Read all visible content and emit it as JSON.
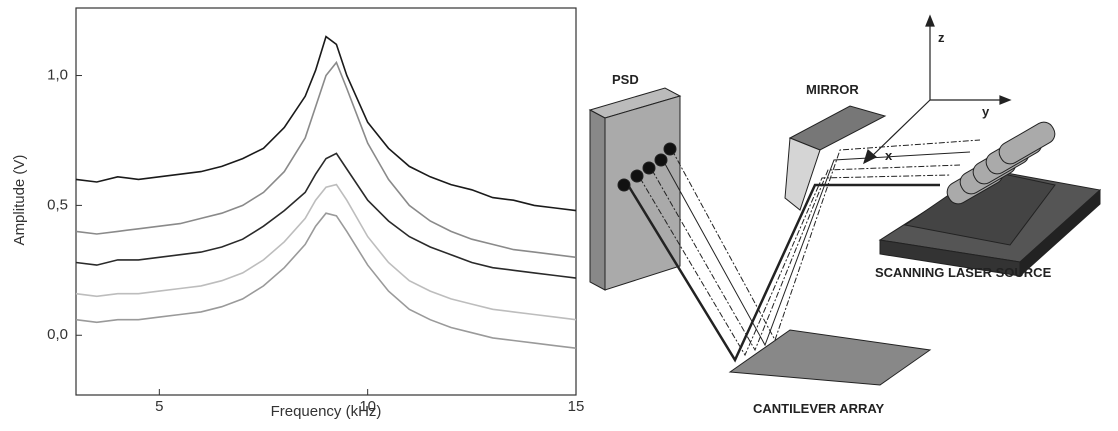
{
  "chart_data": {
    "type": "line",
    "xlabel": "Frequency (kHz)",
    "ylabel": "Amplitude (V)",
    "x": [
      3,
      3.5,
      4,
      4.5,
      5,
      5.5,
      6,
      6.5,
      7,
      7.5,
      8,
      8.5,
      8.75,
      9,
      9.25,
      9.5,
      10,
      10.5,
      11,
      11.5,
      12,
      12.5,
      13,
      13.5,
      14,
      14.5,
      15
    ],
    "series": [
      {
        "color": "#1a1a1a",
        "values": [
          0.6,
          0.59,
          0.61,
          0.6,
          0.61,
          0.62,
          0.63,
          0.65,
          0.68,
          0.72,
          0.8,
          0.92,
          1.02,
          1.15,
          1.12,
          1.0,
          0.82,
          0.72,
          0.65,
          0.61,
          0.58,
          0.56,
          0.53,
          0.52,
          0.5,
          0.49,
          0.48
        ]
      },
      {
        "color": "#8a8a8a",
        "values": [
          0.4,
          0.39,
          0.4,
          0.41,
          0.42,
          0.43,
          0.45,
          0.47,
          0.5,
          0.55,
          0.63,
          0.76,
          0.88,
          1.0,
          1.05,
          0.95,
          0.74,
          0.6,
          0.5,
          0.44,
          0.4,
          0.37,
          0.35,
          0.33,
          0.32,
          0.31,
          0.3
        ]
      },
      {
        "color": "#2a2a2a",
        "values": [
          0.28,
          0.27,
          0.29,
          0.29,
          0.3,
          0.31,
          0.32,
          0.34,
          0.37,
          0.42,
          0.48,
          0.55,
          0.62,
          0.68,
          0.7,
          0.64,
          0.52,
          0.44,
          0.38,
          0.34,
          0.31,
          0.28,
          0.26,
          0.25,
          0.24,
          0.23,
          0.22
        ]
      },
      {
        "color": "#bdbdbd",
        "values": [
          0.16,
          0.15,
          0.16,
          0.16,
          0.17,
          0.18,
          0.19,
          0.21,
          0.24,
          0.29,
          0.36,
          0.45,
          0.52,
          0.57,
          0.58,
          0.52,
          0.38,
          0.28,
          0.21,
          0.17,
          0.14,
          0.12,
          0.1,
          0.09,
          0.08,
          0.07,
          0.06
        ]
      },
      {
        "color": "#9a9a9a",
        "values": [
          0.06,
          0.05,
          0.06,
          0.06,
          0.07,
          0.08,
          0.09,
          0.11,
          0.14,
          0.19,
          0.26,
          0.35,
          0.42,
          0.47,
          0.46,
          0.4,
          0.27,
          0.17,
          0.1,
          0.06,
          0.03,
          0.01,
          -0.01,
          -0.02,
          -0.03,
          -0.04,
          -0.05
        ]
      }
    ],
    "xlim": [
      3,
      15
    ],
    "xticks": [
      5,
      10,
      15
    ],
    "ylim": [
      -0.23,
      1.26
    ],
    "yticks": [
      {
        "value": 0,
        "label": "0,0"
      },
      {
        "value": 0.5,
        "label": "0,5"
      },
      {
        "value": 1,
        "label": "1,0"
      }
    ]
  },
  "diagram": {
    "psd": "PSD",
    "mirror": "MIRROR",
    "axis_z": "z",
    "axis_y": "y",
    "axis_x": "x",
    "laser": "SCANNING LASER SOURCE",
    "cantilever": "CANTILEVER ARRAY"
  }
}
